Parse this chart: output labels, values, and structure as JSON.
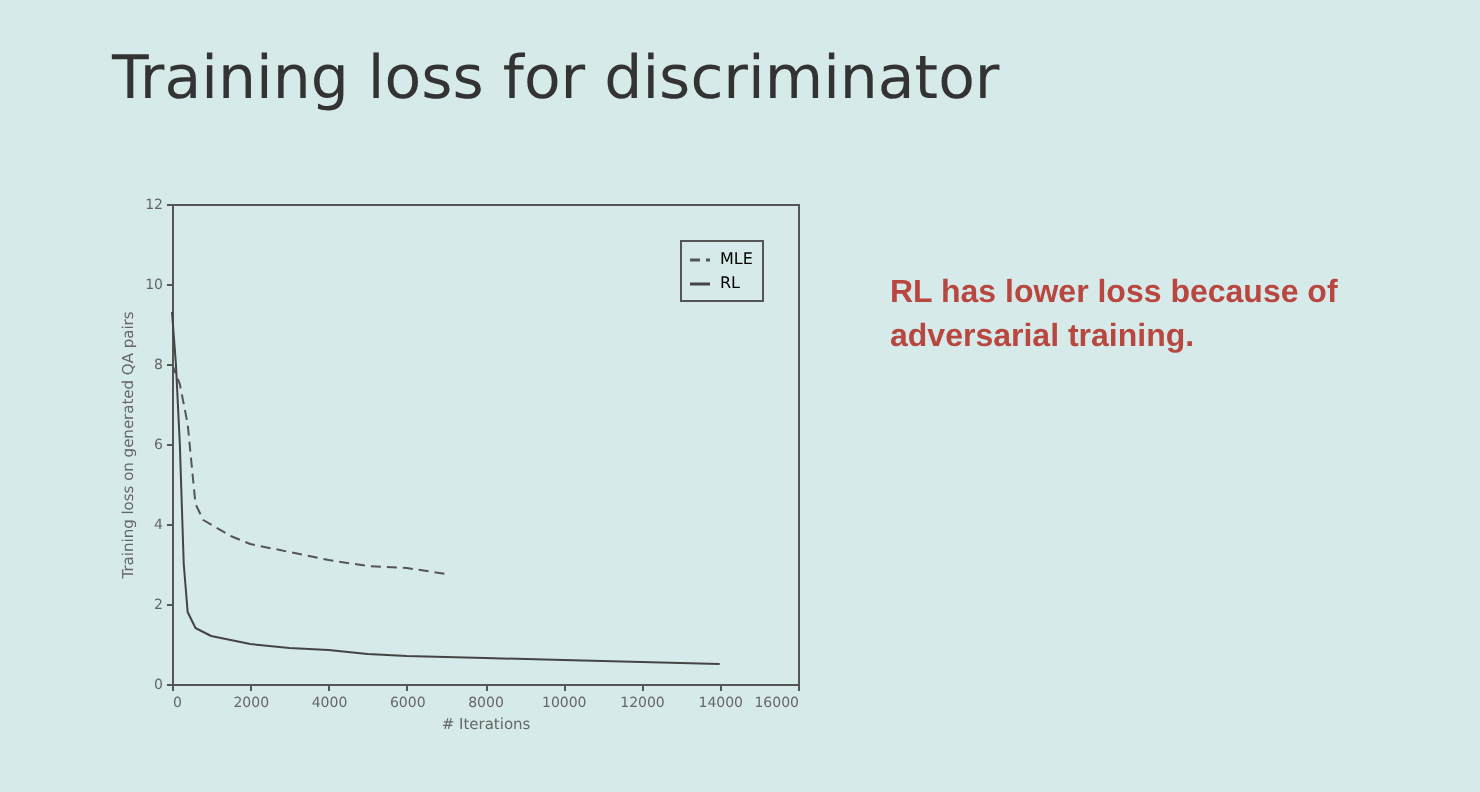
{
  "chart_data": {
    "type": "line",
    "title": "Training loss for discriminator",
    "xlabel": "# Iterations",
    "ylabel": "Training loss on generated QA pairs",
    "annotations": [
      "RL has lower loss because of adversarial training."
    ],
    "xlim": [
      0,
      16000
    ],
    "xticks": [
      0,
      2000,
      4000,
      6000,
      8000,
      10000,
      12000,
      14000,
      16000
    ],
    "ylim": [
      0,
      12
    ],
    "yticks": [
      0,
      2,
      4,
      6,
      8,
      10,
      12
    ],
    "grid": false,
    "legend": "top right",
    "marker": "none",
    "series": [
      {
        "name": "MLE",
        "color": "#555555",
        "line_style": "dashed",
        "x": [
          0,
          200,
          400,
          500,
          600,
          800,
          1500,
          2000,
          3000,
          4000,
          5000,
          6000,
          7000
        ],
        "values": [
          8.0,
          7.5,
          6.5,
          5.5,
          4.5,
          4.1,
          3.7,
          3.5,
          3.3,
          3.1,
          2.95,
          2.9,
          2.75
        ]
      },
      {
        "name": "RL",
        "color": "#444444",
        "line_style": "solid",
        "x": [
          0,
          100,
          200,
          300,
          400,
          600,
          1000,
          2000,
          3000,
          4000,
          5000,
          6000,
          8000,
          10000,
          12000,
          14000
        ],
        "values": [
          9.3,
          8.0,
          6.0,
          3.0,
          1.8,
          1.4,
          1.2,
          1.0,
          0.9,
          0.85,
          0.75,
          0.7,
          0.65,
          0.6,
          0.55,
          0.5
        ]
      }
    ]
  }
}
